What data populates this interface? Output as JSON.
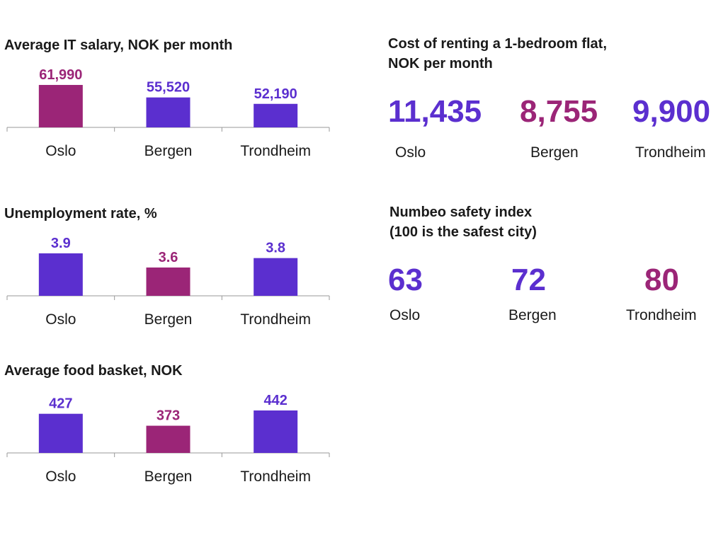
{
  "colors": {
    "purple": "#5b2fcf",
    "magenta": "#9b2577",
    "axis": "#999999"
  },
  "chart_data": [
    {
      "type": "bar",
      "title": "Average IT salary, NOK per month",
      "categories": [
        "Oslo",
        "Bergen",
        "Trondheim"
      ],
      "values": [
        61990,
        55520,
        52190
      ],
      "value_labels": [
        "61,990",
        "55,520",
        "52,190"
      ],
      "highlight_index": 0,
      "ylim": [
        40000,
        62000
      ]
    },
    {
      "type": "bar",
      "title": "Unemployment rate, %",
      "categories": [
        "Oslo",
        "Bergen",
        "Trondheim"
      ],
      "values": [
        3.9,
        3.6,
        3.8
      ],
      "value_labels": [
        "3.9",
        "3.6",
        "3.8"
      ],
      "highlight_index": 1,
      "ylim": [
        3.0,
        3.9
      ]
    },
    {
      "type": "bar",
      "title": "Average food basket, NOK",
      "categories": [
        "Oslo",
        "Bergen",
        "Trondheim"
      ],
      "values": [
        427,
        373,
        442
      ],
      "value_labels": [
        "427",
        "373",
        "442"
      ],
      "highlight_index": 1,
      "ylim": [
        250,
        442
      ]
    }
  ],
  "rent": {
    "title_line1": "Cost of renting a 1-bedroom flat,",
    "title_line2": "NOK per month",
    "items": [
      {
        "value": "11,435",
        "city": "Oslo",
        "highlight": false
      },
      {
        "value": "8,755",
        "city": "Bergen",
        "highlight": true
      },
      {
        "value": "9,900",
        "city": "Trondheim",
        "highlight": false
      }
    ]
  },
  "safety": {
    "title_line1": "Numbeo safety index",
    "title_line2": "(100 is the safest city)",
    "items": [
      {
        "value": "63",
        "city": "Oslo",
        "highlight": false
      },
      {
        "value": "72",
        "city": "Bergen",
        "highlight": false
      },
      {
        "value": "80",
        "city": "Trondheim",
        "highlight": true
      }
    ]
  }
}
